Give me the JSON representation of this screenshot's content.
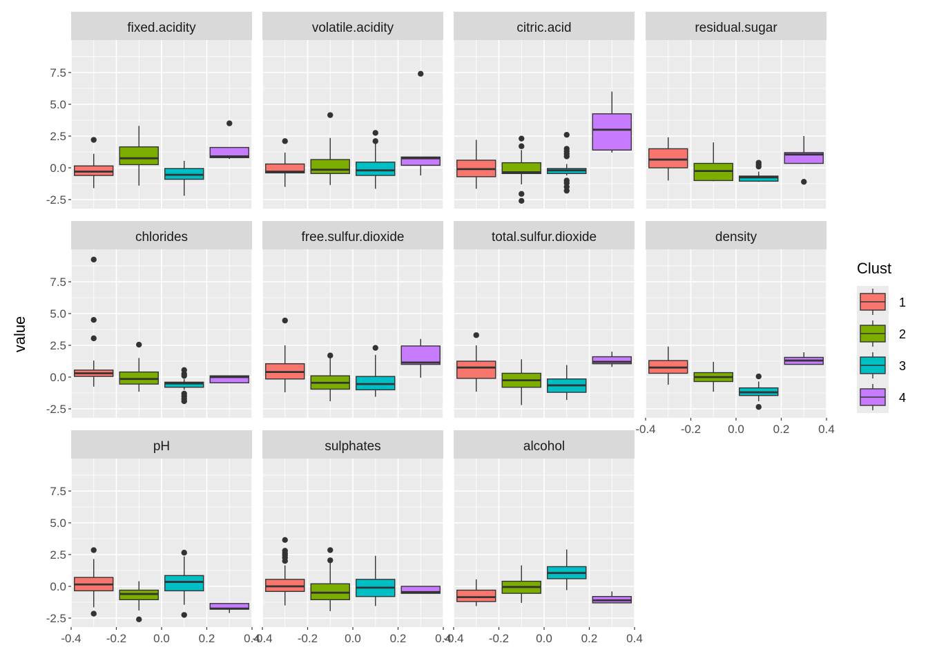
{
  "chart_data": {
    "type": "boxplot",
    "title": "",
    "xlabel": "",
    "ylabel": "value",
    "ylim": [
      -3.2,
      10.0
    ],
    "xlim": [
      -0.4,
      0.4
    ],
    "x_ticks": [
      "-0.4",
      "-0.2",
      "0.0",
      "0.2",
      "0.4"
    ],
    "y_ticks": [
      "-2.5",
      "0.0",
      "2.5",
      "5.0",
      "7.5"
    ],
    "y_tick_values": [
      -2.5,
      0.0,
      2.5,
      5.0,
      7.5
    ],
    "x_tick_values": [
      -0.4,
      -0.2,
      0.0,
      0.2,
      0.4
    ],
    "grid": true,
    "legend": {
      "title": "Clust",
      "position": "right",
      "entries": [
        {
          "label": "1",
          "color": "#F8766D"
        },
        {
          "label": "2",
          "color": "#7CAE00"
        },
        {
          "label": "3",
          "color": "#00BFC4"
        },
        {
          "label": "4",
          "color": "#C77CFF"
        }
      ]
    },
    "facets": [
      {
        "name": "fixed.acidity",
        "boxes": [
          {
            "clust": "1",
            "min": -1.6,
            "q1": -0.6,
            "median": -0.3,
            "q3": 0.15,
            "max": 1.1,
            "outliers": [
              2.2
            ]
          },
          {
            "clust": "2",
            "min": -1.4,
            "q1": 0.25,
            "median": 0.75,
            "q3": 1.65,
            "max": 3.3,
            "outliers": []
          },
          {
            "clust": "3",
            "min": -2.2,
            "q1": -0.9,
            "median": -0.55,
            "q3": -0.05,
            "max": 0.55,
            "outliers": []
          },
          {
            "clust": "4",
            "min": 0.7,
            "q1": 0.8,
            "median": 0.9,
            "q3": 1.6,
            "max": 1.6,
            "outliers": [
              3.5
            ]
          }
        ]
      },
      {
        "name": "volatile.acidity",
        "boxes": [
          {
            "clust": "1",
            "min": -1.5,
            "q1": -0.4,
            "median": -0.3,
            "q3": 0.3,
            "max": 1.2,
            "outliers": [
              2.1
            ]
          },
          {
            "clust": "2",
            "min": -1.35,
            "q1": -0.45,
            "median": -0.15,
            "q3": 0.65,
            "max": 2.35,
            "outliers": [
              4.15
            ]
          },
          {
            "clust": "3",
            "min": -1.65,
            "q1": -0.6,
            "median": -0.2,
            "q3": 0.45,
            "max": 2.1,
            "outliers": [
              2.1,
              2.75
            ]
          },
          {
            "clust": "4",
            "min": -0.6,
            "q1": 0.2,
            "median": 0.75,
            "q3": 0.85,
            "max": 0.85,
            "outliers": [
              7.4
            ]
          }
        ]
      },
      {
        "name": "citric.acid",
        "boxes": [
          {
            "clust": "1",
            "min": -1.65,
            "q1": -0.7,
            "median": -0.1,
            "q3": 0.6,
            "max": 2.2,
            "outliers": []
          },
          {
            "clust": "2",
            "min": -1.3,
            "q1": -0.45,
            "median": -0.35,
            "q3": 0.4,
            "max": 1.4,
            "outliers": [
              1.7,
              2.3,
              -2.05,
              -2.6
            ]
          },
          {
            "clust": "3",
            "min": -0.6,
            "q1": -0.45,
            "median": -0.2,
            "q3": -0.05,
            "max": 0.3,
            "outliers": [
              0.9,
              1.1,
              1.3,
              1.5,
              2.6,
              -1.0,
              -1.2,
              -1.5,
              -1.8
            ]
          },
          {
            "clust": "4",
            "min": 1.2,
            "q1": 1.4,
            "median": 3.0,
            "q3": 4.25,
            "max": 6.0,
            "outliers": []
          }
        ]
      },
      {
        "name": "residual.sugar",
        "boxes": [
          {
            "clust": "1",
            "min": -1.0,
            "q1": 0.0,
            "median": 0.65,
            "q3": 1.5,
            "max": 2.4,
            "outliers": []
          },
          {
            "clust": "2",
            "min": -1.05,
            "q1": -1.0,
            "median": -0.25,
            "q3": 0.35,
            "max": 2.0,
            "outliers": []
          },
          {
            "clust": "3",
            "min": -1.1,
            "q1": -1.05,
            "median": -0.75,
            "q3": -0.65,
            "max": -0.3,
            "outliers": [
              0.1,
              0.25,
              0.4
            ]
          },
          {
            "clust": "4",
            "min": 0.35,
            "q1": 0.35,
            "median": 1.05,
            "q3": 1.2,
            "max": 2.5,
            "outliers": [
              -1.1
            ]
          }
        ]
      },
      {
        "name": "chlorides",
        "boxes": [
          {
            "clust": "1",
            "min": -0.75,
            "q1": 0.05,
            "median": 0.3,
            "q3": 0.55,
            "max": 1.3,
            "outliers": [
              3.05,
              4.5,
              9.25
            ]
          },
          {
            "clust": "2",
            "min": -1.15,
            "q1": -0.55,
            "median": -0.15,
            "q3": 0.4,
            "max": 1.5,
            "outliers": [
              2.55
            ]
          },
          {
            "clust": "3",
            "min": -1.0,
            "q1": -0.8,
            "median": -0.5,
            "q3": -0.4,
            "max": -0.15,
            "outliers": [
              0.1,
              0.25,
              0.55,
              -1.3,
              -1.5,
              -1.7,
              -1.9
            ]
          },
          {
            "clust": "4",
            "min": -0.45,
            "q1": -0.45,
            "median": 0.0,
            "q3": 0.1,
            "max": 0.1,
            "outliers": []
          }
        ]
      },
      {
        "name": "free.sulfur.dioxide",
        "boxes": [
          {
            "clust": "1",
            "min": -1.2,
            "q1": -0.15,
            "median": 0.4,
            "q3": 1.05,
            "max": 2.5,
            "outliers": [
              4.45
            ]
          },
          {
            "clust": "2",
            "min": -1.9,
            "q1": -0.95,
            "median": -0.45,
            "q3": 0.1,
            "max": 1.5,
            "outliers": [
              1.7
            ]
          },
          {
            "clust": "3",
            "min": -1.55,
            "q1": -1.0,
            "median": -0.55,
            "q3": 0.05,
            "max": 1.75,
            "outliers": [
              2.3
            ]
          },
          {
            "clust": "4",
            "min": -0.05,
            "q1": 1.0,
            "median": 1.15,
            "q3": 2.45,
            "max": 3.0,
            "outliers": []
          }
        ]
      },
      {
        "name": "total.sulfur.dioxide",
        "boxes": [
          {
            "clust": "1",
            "min": -1.15,
            "q1": -0.1,
            "median": 0.75,
            "q3": 1.25,
            "max": 2.5,
            "outliers": [
              3.3
            ]
          },
          {
            "clust": "2",
            "min": -2.2,
            "q1": -0.8,
            "median": -0.25,
            "q3": 0.3,
            "max": 1.4,
            "outliers": []
          },
          {
            "clust": "3",
            "min": -1.8,
            "q1": -1.2,
            "median": -0.65,
            "q3": -0.15,
            "max": 0.95,
            "outliers": []
          },
          {
            "clust": "4",
            "min": 0.8,
            "q1": 1.05,
            "median": 1.2,
            "q3": 1.6,
            "max": 2.0,
            "outliers": []
          }
        ]
      },
      {
        "name": "density",
        "boxes": [
          {
            "clust": "1",
            "min": -0.6,
            "q1": 0.3,
            "median": 0.75,
            "q3": 1.3,
            "max": 2.4,
            "outliers": []
          },
          {
            "clust": "2",
            "min": -1.15,
            "q1": -0.35,
            "median": 0.0,
            "q3": 0.35,
            "max": 1.2,
            "outliers": []
          },
          {
            "clust": "3",
            "min": -1.9,
            "q1": -1.45,
            "median": -1.2,
            "q3": -0.85,
            "max": -0.35,
            "outliers": [
              0.05,
              -2.35
            ]
          },
          {
            "clust": "4",
            "min": 1.0,
            "q1": 1.0,
            "median": 1.3,
            "q3": 1.55,
            "max": 1.95,
            "outliers": []
          }
        ]
      },
      {
        "name": "pH",
        "boxes": [
          {
            "clust": "1",
            "min": -1.65,
            "q1": -0.35,
            "median": 0.15,
            "q3": 0.7,
            "max": 2.15,
            "outliers": [
              2.85,
              -2.15
            ]
          },
          {
            "clust": "2",
            "min": -1.9,
            "q1": -1.05,
            "median": -0.6,
            "q3": -0.3,
            "max": 0.4,
            "outliers": [
              -2.6
            ]
          },
          {
            "clust": "3",
            "min": -1.45,
            "q1": -0.35,
            "median": 0.35,
            "q3": 0.85,
            "max": 2.35,
            "outliers": [
              2.65,
              -2.25
            ]
          },
          {
            "clust": "4",
            "min": -2.1,
            "q1": -1.8,
            "median": -1.75,
            "q3": -1.35,
            "max": -1.35,
            "outliers": []
          }
        ]
      },
      {
        "name": "sulphates",
        "boxes": [
          {
            "clust": "1",
            "min": -1.5,
            "q1": -0.4,
            "median": 0.0,
            "q3": 0.55,
            "max": 1.65,
            "outliers": [
              2.0,
              2.25,
              2.45,
              2.6,
              2.8,
              3.65
            ]
          },
          {
            "clust": "2",
            "min": -1.95,
            "q1": -1.05,
            "median": -0.5,
            "q3": 0.2,
            "max": 2.0,
            "outliers": [
              2.05,
              2.85
            ]
          },
          {
            "clust": "3",
            "min": -1.55,
            "q1": -0.8,
            "median": -0.1,
            "q3": 0.55,
            "max": 2.4,
            "outliers": []
          },
          {
            "clust": "4",
            "min": -0.55,
            "q1": -0.55,
            "median": -0.45,
            "q3": 0.0,
            "max": 0.0,
            "outliers": []
          }
        ]
      },
      {
        "name": "alcohol",
        "boxes": [
          {
            "clust": "1",
            "min": -1.55,
            "q1": -1.2,
            "median": -0.85,
            "q3": -0.3,
            "max": 0.55,
            "outliers": []
          },
          {
            "clust": "2",
            "min": -1.3,
            "q1": -0.55,
            "median": -0.05,
            "q3": 0.4,
            "max": 1.65,
            "outliers": []
          },
          {
            "clust": "3",
            "min": -0.3,
            "q1": 0.6,
            "median": 1.05,
            "q3": 1.55,
            "max": 2.9,
            "outliers": []
          },
          {
            "clust": "4",
            "min": -1.3,
            "q1": -1.3,
            "median": -1.1,
            "q3": -0.8,
            "max": -0.4,
            "outliers": []
          }
        ]
      }
    ]
  }
}
